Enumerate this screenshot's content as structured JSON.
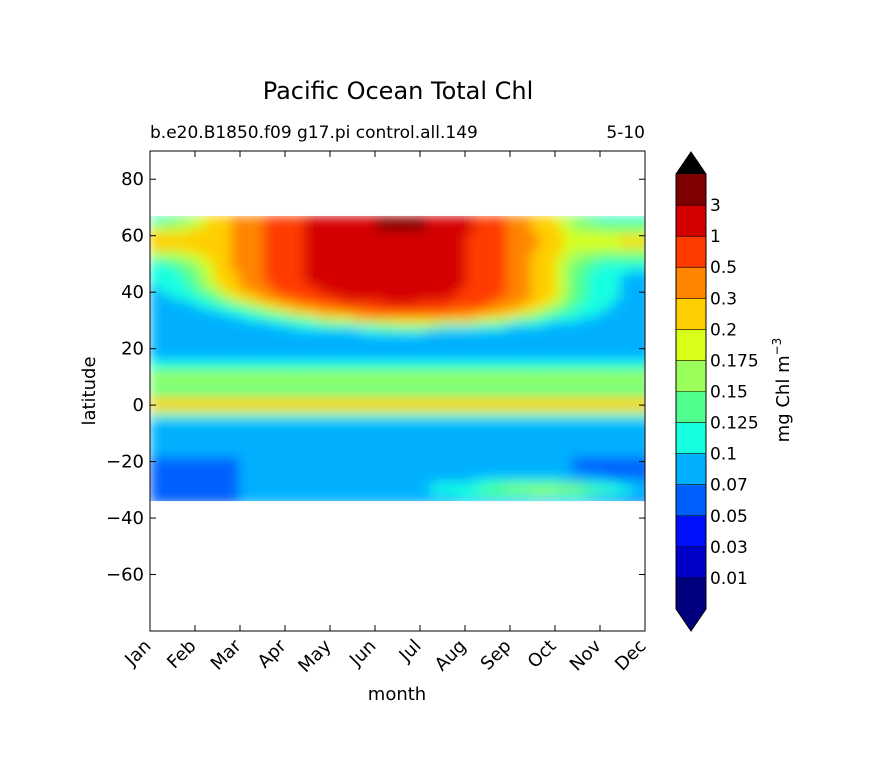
{
  "chart_data": {
    "type": "heatmap",
    "title": "Pacific Ocean Total Chl",
    "subtitle_left": "b.e20.B1850.f09 g17.pi control.all.149",
    "subtitle_right": "5-10",
    "xlabel": "month",
    "ylabel": "latitude",
    "x_ticks": [
      "Jan",
      "Feb",
      "Mar",
      "Apr",
      "May",
      "Jun",
      "Jul",
      "Aug",
      "Sep",
      "Oct",
      "Nov",
      "Dec"
    ],
    "ylim": [
      -80,
      90
    ],
    "y_ticks": [
      80,
      60,
      40,
      20,
      0,
      -20,
      -40,
      -60
    ],
    "y_tick_labels": [
      "80",
      "60",
      "40",
      "20",
      "0",
      "−20",
      "−40",
      "−60"
    ],
    "data_lat_range": [
      -34,
      67
    ],
    "colorbar": {
      "label": "mg Chl m",
      "label_superscript": "−3",
      "levels": [
        "0.01",
        "0.03",
        "0.05",
        "0.07",
        "0.1",
        "0.125",
        "0.15",
        "0.175",
        "0.2",
        "0.3",
        "0.5",
        "1",
        "3"
      ],
      "colors": [
        "#00007f",
        "#0000c8",
        "#0010ff",
        "#0060ff",
        "#00b0ff",
        "#16ffe1",
        "#51ff8f",
        "#9aff5a",
        "#d8ff18",
        "#ffce00",
        "#ff8400",
        "#ff3b00",
        "#d40000",
        "#7f0000"
      ],
      "extend_low_color": "#00007f",
      "extend_high_color": "#000000",
      "extend": "both"
    },
    "grid": false,
    "field_features": [
      {
        "region": "subpolar north, lat 35-66, Mar-Sep",
        "approx_value": 1.2
      },
      {
        "region": "peak bloom, lat 58-66, May-Jul",
        "approx_value": 3
      },
      {
        "region": "north Pacific subtropical gyre, lat 20-32, Apr-Oct",
        "approx_value": 0.06
      },
      {
        "region": "equatorial upwelling, lat -3-3",
        "approx_value": 0.25
      },
      {
        "region": "south Pacific gyre, lat -33 to -20",
        "approx_value": 0.07
      }
    ]
  }
}
